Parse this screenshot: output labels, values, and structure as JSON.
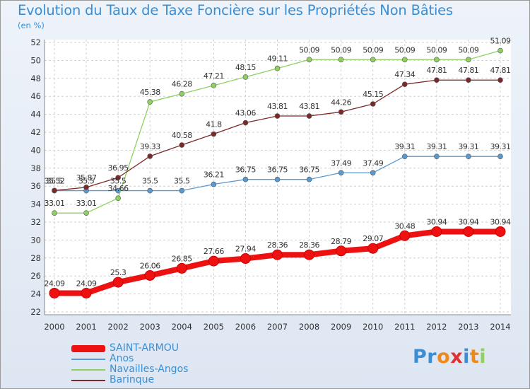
{
  "header": {
    "title": "Evolution du Taux de Taxe Foncière sur les Propriétés Non Bâties",
    "subtitle": "(en %)"
  },
  "chart_data": {
    "type": "line",
    "title": "Evolution du Taux de Taxe Foncière sur les Propriétés Non Bâties",
    "ylabel": "(en %)",
    "xlabel": "",
    "ylim": [
      22,
      52
    ],
    "yticks": [
      22,
      24,
      26,
      28,
      30,
      32,
      34,
      36,
      38,
      40,
      42,
      44,
      46,
      48,
      50,
      52
    ],
    "categories": [
      "2000",
      "2001",
      "2002",
      "2003",
      "2004",
      "2005",
      "2006",
      "2007",
      "2008",
      "2009",
      "2010",
      "2011",
      "2012",
      "2013",
      "2014"
    ],
    "grid": true,
    "legend_position": "bottom-left",
    "series": [
      {
        "name": "SAINT-ARMOU",
        "color": "#ee1111",
        "values": [
          24.09,
          24.09,
          25.3,
          26.06,
          26.85,
          27.66,
          27.94,
          28.36,
          28.36,
          28.79,
          29.07,
          30.48,
          30.94,
          30.94,
          30.94
        ]
      },
      {
        "name": "Anos",
        "color": "#5a9ad0",
        "values": [
          35.5,
          35.5,
          35.5,
          35.5,
          35.5,
          36.21,
          36.75,
          36.75,
          36.75,
          37.49,
          37.49,
          39.31,
          39.31,
          39.31,
          39.31
        ]
      },
      {
        "name": "Navailles-Angos",
        "color": "#8fd061",
        "values": [
          33.01,
          33.01,
          34.66,
          45.38,
          46.28,
          47.21,
          48.15,
          49.11,
          50.09,
          50.09,
          50.09,
          50.09,
          50.09,
          50.09,
          51.09
        ]
      },
      {
        "name": "Barinque",
        "color": "#7a2a2a",
        "values": [
          35.52,
          35.87,
          36.95,
          39.33,
          40.58,
          41.8,
          43.06,
          43.81,
          43.81,
          44.26,
          45.15,
          47.34,
          47.81,
          47.81,
          47.81
        ]
      }
    ],
    "data_labels": {
      "SAINT-ARMOU": [
        "24.09",
        "24.09",
        "25.3",
        "26.06",
        "26.85",
        "27.66",
        "27.94",
        "28.36",
        "28.36",
        "28.79",
        "29.07",
        "30.48",
        "30.94",
        "30.94",
        "30.94"
      ],
      "Anos": [
        "35.5",
        "35.5",
        "35.5",
        "35.5",
        "35.5",
        "36.21",
        "36.75",
        "36.75",
        "36.75",
        "37.49",
        "37.49",
        "39.31",
        "39.31",
        "39.31",
        "39.31"
      ],
      "Navailles-Angos": [
        "33.01",
        "33.01",
        "34.66",
        "45.38",
        "46.28",
        "47.21",
        "48.15",
        "49.11",
        "50.09",
        "50.09",
        "50.09",
        "50.09",
        "50.09",
        "50.09",
        "51.09"
      ],
      "Barinque": [
        "35.52",
        "35.87",
        "36.95",
        "39.33",
        "40.58",
        "41.8",
        "43.06",
        "43.81",
        "43.81",
        "44.26",
        "45.15",
        "47.34",
        "47.81",
        "47.81",
        "47.81"
      ]
    }
  },
  "legend": {
    "items": [
      {
        "label": "SAINT-ARMOU",
        "color": "#ee1111"
      },
      {
        "label": "Anos",
        "color": "#5a9ad0"
      },
      {
        "label": "Navailles-Angos",
        "color": "#8fd061"
      },
      {
        "label": "Barinque",
        "color": "#7a2a2a"
      }
    ]
  },
  "logo": {
    "text": "Proxiti",
    "letter_colors": [
      "#3a8ed4",
      "#3a8ed4",
      "#ee8a1a",
      "#e23030",
      "#3a8ed4",
      "#ee8a1a",
      "#8fd061"
    ]
  }
}
